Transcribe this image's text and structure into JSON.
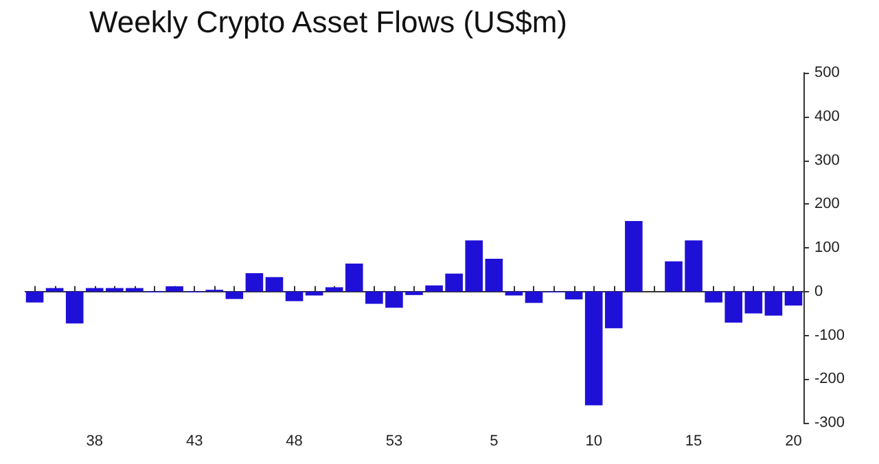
{
  "chart_data": {
    "type": "bar",
    "title": "Weekly Crypto Asset Flows (US$m)",
    "categories": [
      null,
      null,
      null,
      "38",
      null,
      null,
      null,
      null,
      "43",
      null,
      null,
      null,
      null,
      "48",
      null,
      null,
      null,
      null,
      "53",
      null,
      null,
      null,
      null,
      "5",
      null,
      null,
      null,
      null,
      "10",
      null,
      null,
      null,
      null,
      "15",
      null,
      null,
      null,
      null,
      "20"
    ],
    "values": [
      -25,
      8,
      -73,
      8,
      8,
      8,
      -2,
      12,
      -2,
      4,
      -17,
      42,
      33,
      -22,
      -9,
      10,
      64,
      -28,
      -37,
      -8,
      14,
      41,
      117,
      75,
      -9,
      -26,
      -2,
      -18,
      -260,
      -84,
      161,
      0,
      69,
      117,
      -25,
      -71,
      -50,
      -55,
      -32
    ],
    "color": "#1f10d8",
    "ylim": [
      -300,
      500
    ],
    "yticks": [
      -300,
      -200,
      -100,
      0,
      100,
      200,
      300,
      400,
      500
    ],
    "grid": false,
    "ref_lines": [
      {
        "axis": "y",
        "value": 0,
        "color": "#333333"
      }
    ]
  }
}
